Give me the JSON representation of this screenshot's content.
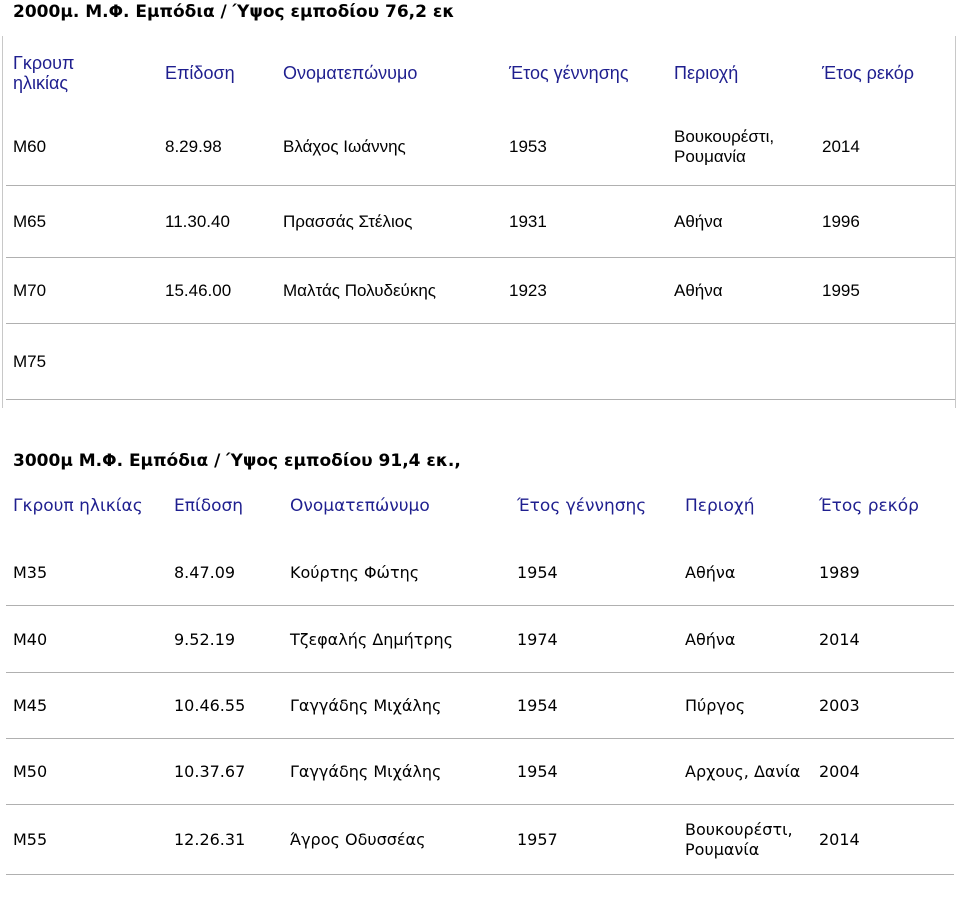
{
  "event1": {
    "title": "2000μ. Μ.Φ. Εμπόδια / Ύψος εμποδίου 76,2 εκ",
    "headers": [
      "Γκρουπ ηλικίας",
      "Επίδοση",
      "Ονοματεπώνυμο",
      "Έτος γέννησης",
      "Περιοχή",
      "Έτος ρεκόρ"
    ],
    "header_group": [
      "Γκρουπ",
      "ηλικίας"
    ],
    "rows": [
      {
        "group": "M60",
        "mark": "8.29.98",
        "name": "Βλάχος Ιωάννης",
        "birth": "1953",
        "area": [
          "Βουκουρέστι,",
          "Ρουμανία"
        ],
        "year": "2014"
      },
      {
        "group": "M65",
        "mark": "11.30.40",
        "name": "Πρασσάς Στέλιος",
        "birth": "1931",
        "area": [
          "Αθήνα"
        ],
        "year": "1996"
      },
      {
        "group": "M70",
        "mark": "15.46.00",
        "name": "Μαλτάς Πολυδεύκης",
        "birth": "1923",
        "area": [
          "Αθήνα"
        ],
        "year": "1995"
      },
      {
        "group": "M75",
        "mark": "",
        "name": "",
        "birth": "",
        "area": [
          ""
        ],
        "year": ""
      }
    ]
  },
  "event2": {
    "title": "3000μ Μ.Φ. Εμπόδια / Ύψος εμποδίου 91,4 εκ.,",
    "headers": [
      "Γκρουπ ηλικίας",
      "Επίδοση",
      "Ονοματεπώνυμο",
      "Έτος γέννησης",
      "Περιοχή",
      "Έτος ρεκόρ"
    ],
    "rows": [
      {
        "group": "M35",
        "mark": "8.47.09",
        "name": "Κούρτης Φώτης",
        "birth": "1954",
        "area": [
          "Αθήνα"
        ],
        "year": "1989"
      },
      {
        "group": "M40",
        "mark": "9.52.19",
        "name": "Τζεφαλής Δημήτρης",
        "birth": "1974",
        "area": [
          "Αθήνα"
        ],
        "year": "2014"
      },
      {
        "group": "M45",
        "mark": "10.46.55",
        "name": "Γαγγάδης Μιχάλης",
        "birth": "1954",
        "area": [
          "Πύργος"
        ],
        "year": "2003"
      },
      {
        "group": "M50",
        "mark": "10.37.67",
        "name": "Γαγγάδης Μιχάλης",
        "birth": "1954",
        "area": [
          "Αρχους, Δανία"
        ],
        "year": "2004"
      },
      {
        "group": "M55",
        "mark": "12.26.31",
        "name": "Άγρος Οδυσσέας",
        "birth": "1957",
        "area": [
          "Βουκουρέστι,",
          "Ρουμανία"
        ],
        "year": "2014"
      }
    ]
  }
}
